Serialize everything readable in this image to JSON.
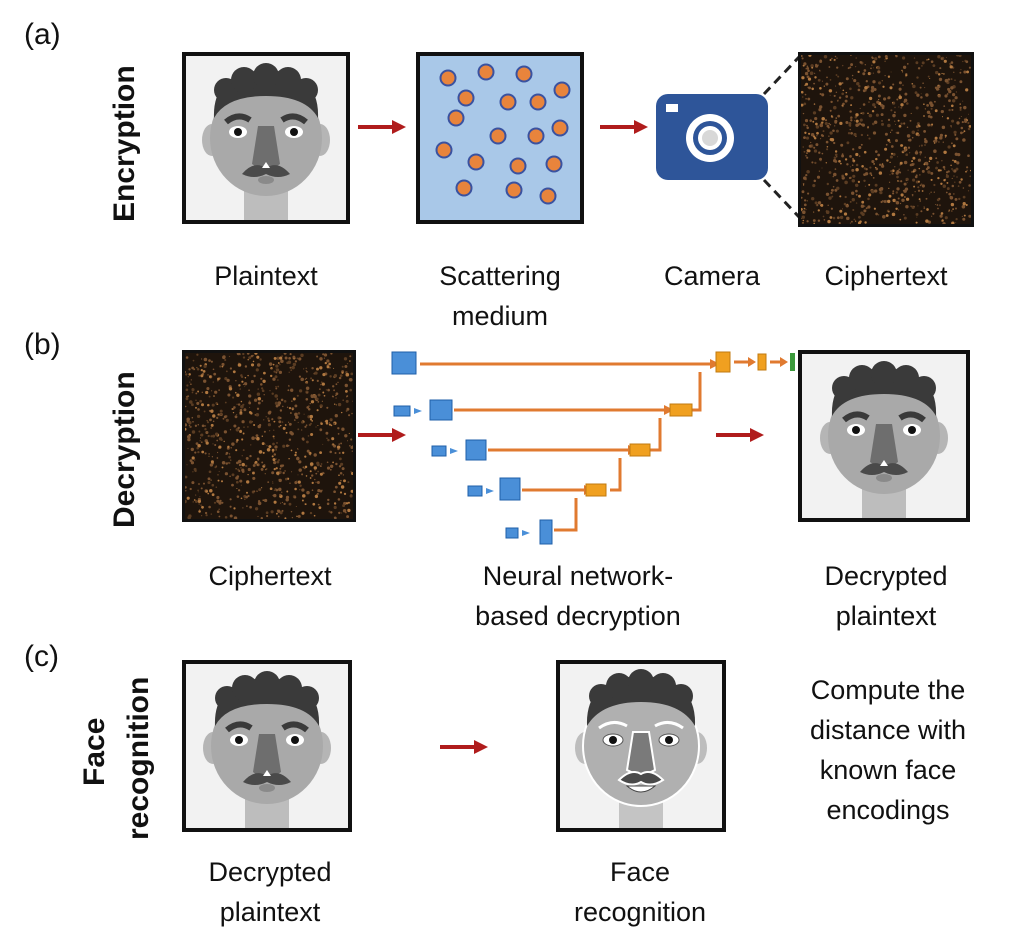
{
  "panels": {
    "a": {
      "label": "(a)",
      "title": "Encryption",
      "captions": {
        "plaintext": "Plaintext",
        "scattering": "Scattering\nmedium",
        "camera": "Camera",
        "ciphertext": "Ciphertext"
      }
    },
    "b": {
      "label": "(b)",
      "title": "Decryption",
      "captions": {
        "ciphertext": "Ciphertext",
        "network": "Neural network-\nbased decryption",
        "decrypted": "Decrypted\nplaintext"
      }
    },
    "c": {
      "label": "(c)",
      "title_line1": "Face",
      "title_line2": "recognition",
      "captions": {
        "decrypted": "Decrypted\nplaintext",
        "recognition": "Face\nrecognition"
      },
      "note": "Compute the\ndistance with\nknown face\nencodings"
    }
  },
  "colors": {
    "arrow": "#b01c1c",
    "network_path": "#e07a30",
    "medium_bg": "#a9c8e8",
    "particle": "#e8843c",
    "particle_edge": "#3a52a0",
    "camera": "#2e5599",
    "encoder_block": "#4a8fd8",
    "decoder_block": "#f0a020",
    "output_block": "#3c9a3c"
  },
  "icons": [
    "face-icon",
    "camera-icon",
    "arrow-icon",
    "unet-diagram",
    "scattering-medium-icon"
  ]
}
